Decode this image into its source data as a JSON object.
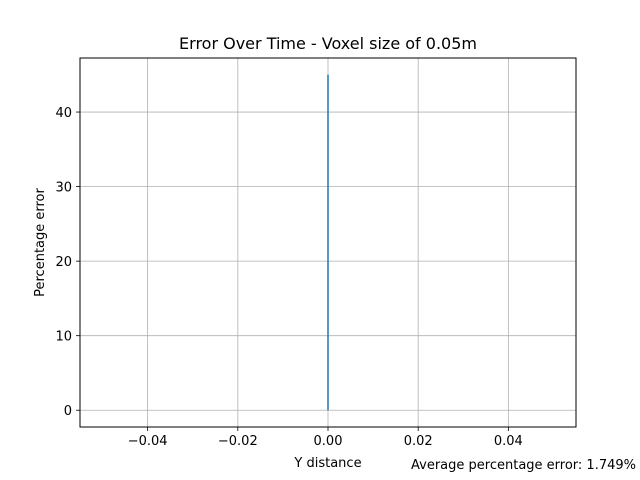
{
  "chart_data": {
    "type": "line",
    "title": "Error Over Time - Voxel size of 0.05m",
    "xlabel": "Y distance",
    "ylabel": "Percentage error",
    "xlim": [
      -0.055,
      0.055
    ],
    "ylim": [
      -2.25,
      47.25
    ],
    "x_ticks": [
      -0.04,
      -0.02,
      0.0,
      0.02,
      0.04
    ],
    "x_tick_labels": [
      "−0.04",
      "−0.02",
      "0.00",
      "0.02",
      "0.04"
    ],
    "y_ticks": [
      0,
      10,
      20,
      30,
      40
    ],
    "y_tick_labels": [
      "0",
      "10",
      "20",
      "30",
      "40"
    ],
    "grid": true,
    "series": [
      {
        "color": "#1f77b4",
        "x": [
          0.0,
          0.0
        ],
        "y": [
          0.0,
          45.0
        ]
      }
    ],
    "annotation": "Average percentage error: 1.749%"
  }
}
